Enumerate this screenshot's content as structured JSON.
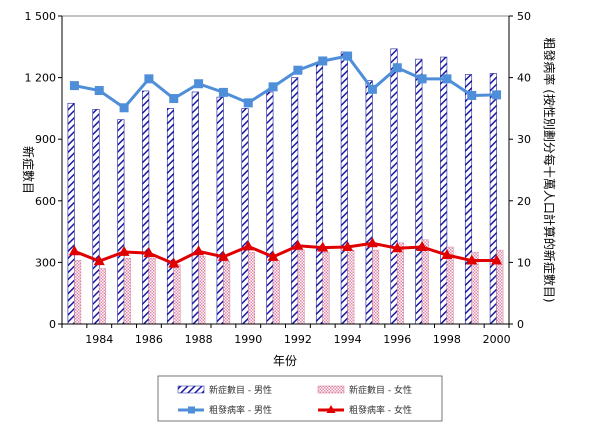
{
  "chart_data": {
    "type": "bar",
    "x_title": "年份",
    "y_left_title": "新症數目",
    "y_right_title": "粗發病率 (按性別劃分每十萬人口計算的新症數目)",
    "y_left_ticks": [
      "0",
      "300",
      "600",
      "900",
      "1 200",
      "1 500"
    ],
    "y_right_ticks": [
      "0",
      "10",
      "20",
      "30",
      "40",
      "50"
    ],
    "ylim_left": [
      0,
      1500
    ],
    "ylim_right": [
      0,
      50
    ],
    "years": [
      1983,
      1984,
      1985,
      1986,
      1987,
      1988,
      1989,
      1990,
      1991,
      1992,
      1993,
      1994,
      1995,
      1996,
      1997,
      1998,
      1999,
      2000
    ],
    "x_tick_labels": [
      {
        "year": 1984,
        "label": "1984"
      },
      {
        "year": 1986,
        "label": "1986"
      },
      {
        "year": 1988,
        "label": "1988"
      },
      {
        "year": 1990,
        "label": "1990"
      },
      {
        "year": 1992,
        "label": "1992"
      },
      {
        "year": 1994,
        "label": "1994"
      },
      {
        "year": 1996,
        "label": "1996"
      },
      {
        "year": 1998,
        "label": "1998"
      },
      {
        "year": 2000,
        "label": "2000"
      }
    ],
    "grid": false,
    "legend_position": "bottom",
    "series": [
      {
        "name": "新症數目 - 男性",
        "kind": "bar",
        "axis": "left",
        "color": "#1a1aa0",
        "values": [
          1075,
          1045,
          995,
          1135,
          1050,
          1130,
          1105,
          1050,
          1130,
          1200,
          1265,
          1325,
          1185,
          1340,
          1290,
          1300,
          1215,
          1220
        ]
      },
      {
        "name": "新症數目 - 女性",
        "kind": "bar",
        "axis": "left",
        "color": "#d87a9a",
        "values": [
          310,
          270,
          320,
          320,
          290,
          330,
          305,
          350,
          310,
          360,
          350,
          360,
          360,
          395,
          410,
          375,
          350,
          360
        ]
      },
      {
        "name": "粗發病率 - 男性",
        "kind": "line",
        "axis": "right",
        "color": "#4f8ed8",
        "values": [
          38.7,
          37.9,
          35.1,
          39.8,
          36.6,
          39.0,
          37.6,
          35.9,
          38.5,
          41.2,
          42.7,
          43.5,
          38.1,
          41.6,
          39.8,
          39.8,
          37.1,
          37.2
        ]
      },
      {
        "name": "粗發病率 - 女性",
        "kind": "line",
        "axis": "right",
        "color": "#e00000",
        "values": [
          11.8,
          10.2,
          11.7,
          11.5,
          9.8,
          11.8,
          10.9,
          12.6,
          10.9,
          12.7,
          12.4,
          12.5,
          13.1,
          12.3,
          12.5,
          11.2,
          10.3,
          10.3
        ]
      }
    ]
  }
}
